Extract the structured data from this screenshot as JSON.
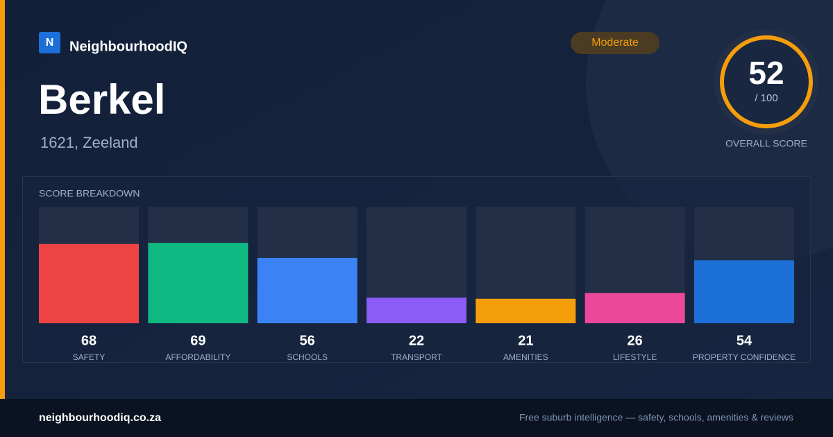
{
  "brand": {
    "logo": "N",
    "name": "NeighbourhoodIQ"
  },
  "title": "Berkel",
  "subtitle": "1621, Zeeland",
  "badge": "Moderate",
  "overall": {
    "score": 52,
    "max_label": "/ 100",
    "label": "OVERALL SCORE"
  },
  "chart_data": {
    "type": "bar",
    "title": "SCORE BREAKDOWN",
    "categories": [
      "SAFETY",
      "AFFORDABILITY",
      "SCHOOLS",
      "TRANSPORT",
      "AMENITIES",
      "LIFESTYLE",
      "PROPERTY CONFIDENCE"
    ],
    "values": [
      68,
      69,
      56,
      22,
      21,
      26,
      54
    ],
    "colors": [
      "#ef4444",
      "#10b981",
      "#3b82f6",
      "#8b5cf6",
      "#f59e0b",
      "#ec4899",
      "#1d6fd8"
    ],
    "ylim": [
      0,
      100
    ]
  },
  "footer": {
    "url": "neighbourhoodiq.co.za",
    "tagline": "Free suburb intelligence — safety, schools, amenities & reviews"
  }
}
